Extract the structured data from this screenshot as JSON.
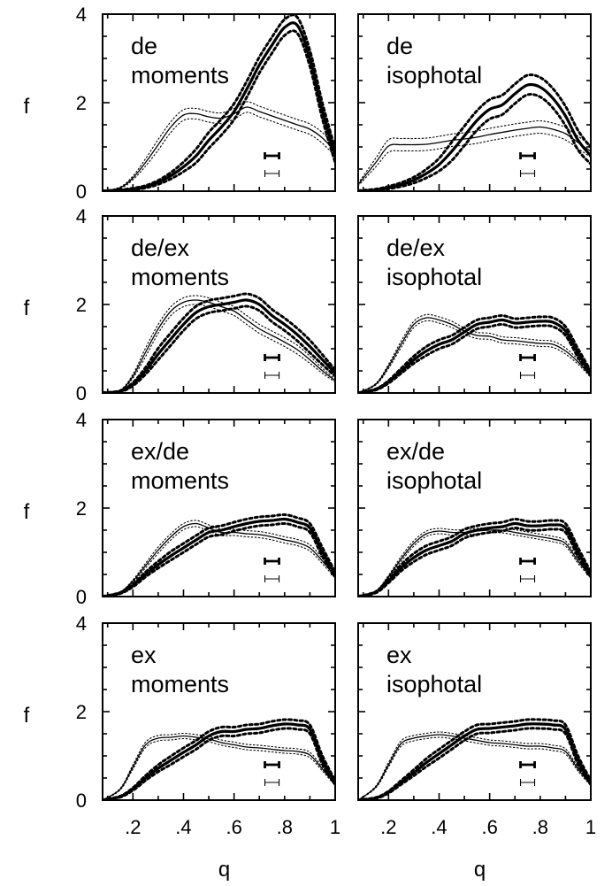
{
  "chart_data": {
    "type": "line",
    "layout_grid": "4 rows x 2 columns",
    "xlabel": "q",
    "ylabel": "f",
    "xlim": [
      0.08,
      1.0
    ],
    "ylim": [
      0,
      4
    ],
    "x_tick_labels": [
      ".2",
      ".4",
      ".6",
      ".8",
      "1"
    ],
    "x_ticks": [
      0.2,
      0.4,
      0.6,
      0.8,
      1.0
    ],
    "y_tick_labels": [
      "0",
      "2",
      "4"
    ],
    "y_ticks": [
      0,
      2,
      4
    ],
    "x": [
      0.08,
      0.15,
      0.2,
      0.25,
      0.3,
      0.35,
      0.4,
      0.45,
      0.5,
      0.55,
      0.6,
      0.65,
      0.7,
      0.75,
      0.8,
      0.85,
      0.9,
      0.95,
      1.0
    ],
    "line_styles": {
      "thick": "thick solid line with thick dotted band",
      "thin": "thin solid line with thin dotted band"
    },
    "panels": [
      {
        "label_line1": "de",
        "label_line2": "moments",
        "thick": [
          0.0,
          0.02,
          0.05,
          0.1,
          0.2,
          0.35,
          0.55,
          0.8,
          1.15,
          1.45,
          1.8,
          2.3,
          2.85,
          3.3,
          3.7,
          3.75,
          3.0,
          1.8,
          0.8
        ],
        "thick_band": 0.18,
        "thin": [
          0.0,
          0.08,
          0.3,
          0.65,
          1.05,
          1.45,
          1.72,
          1.75,
          1.68,
          1.65,
          1.75,
          1.9,
          1.8,
          1.7,
          1.6,
          1.5,
          1.4,
          1.2,
          0.9
        ],
        "thin_band": 0.12,
        "error_bar_x": 0.75,
        "thick_error": 0.08,
        "thin_error": 0.1
      },
      {
        "label_line1": "de",
        "label_line2": "isophotal",
        "thick": [
          0.0,
          0.03,
          0.08,
          0.15,
          0.25,
          0.4,
          0.6,
          0.9,
          1.25,
          1.6,
          1.85,
          1.95,
          2.2,
          2.4,
          2.35,
          2.1,
          1.7,
          1.15,
          0.8
        ],
        "thick_band": 0.22,
        "thin": [
          0.15,
          0.65,
          1.02,
          1.05,
          1.05,
          1.06,
          1.1,
          1.15,
          1.18,
          1.22,
          1.28,
          1.33,
          1.38,
          1.42,
          1.45,
          1.4,
          1.3,
          1.1,
          0.9
        ],
        "thin_band": 0.14,
        "error_bar_x": 0.75,
        "thick_error": 0.08,
        "thin_error": 0.12
      },
      {
        "label_line1": "de/ex",
        "label_line2": "moments",
        "thick": [
          0.0,
          0.04,
          0.2,
          0.5,
          0.88,
          1.22,
          1.55,
          1.82,
          1.95,
          2.0,
          2.05,
          2.1,
          2.0,
          1.75,
          1.55,
          1.32,
          1.05,
          0.75,
          0.45
        ],
        "thick_band": 0.14,
        "thin": [
          0.0,
          0.06,
          0.38,
          0.92,
          1.45,
          1.85,
          2.05,
          2.1,
          2.05,
          1.95,
          1.85,
          1.65,
          1.45,
          1.3,
          1.15,
          0.98,
          0.75,
          0.5,
          0.28
        ],
        "thin_band": 0.1,
        "error_bar_x": 0.75,
        "thick_error": 0.07,
        "thin_error": 0.08
      },
      {
        "label_line1": "de/ex",
        "label_line2": "isophotal",
        "thick": [
          0.0,
          0.08,
          0.25,
          0.5,
          0.75,
          0.95,
          1.1,
          1.2,
          1.38,
          1.55,
          1.6,
          1.65,
          1.58,
          1.6,
          1.62,
          1.6,
          1.4,
          0.9,
          0.45
        ],
        "thick_band": 0.1,
        "thin": [
          0.0,
          0.2,
          0.6,
          1.1,
          1.55,
          1.7,
          1.65,
          1.55,
          1.4,
          1.3,
          1.28,
          1.2,
          1.18,
          1.15,
          1.12,
          1.1,
          0.95,
          0.7,
          0.38
        ],
        "thin_band": 0.07,
        "error_bar_x": 0.75,
        "thick_error": 0.07,
        "thin_error": 0.08
      },
      {
        "label_line1": "ex/de",
        "label_line2": "moments",
        "thick": [
          0.0,
          0.08,
          0.25,
          0.5,
          0.72,
          0.92,
          1.1,
          1.28,
          1.45,
          1.5,
          1.58,
          1.65,
          1.7,
          1.72,
          1.75,
          1.68,
          1.55,
          1.0,
          0.5
        ],
        "thick_band": 0.1,
        "thin": [
          0.0,
          0.1,
          0.35,
          0.7,
          1.05,
          1.35,
          1.58,
          1.65,
          1.55,
          1.45,
          1.45,
          1.42,
          1.4,
          1.35,
          1.28,
          1.22,
          1.1,
          0.8,
          0.45
        ],
        "thin_band": 0.07,
        "error_bar_x": 0.75,
        "thick_error": 0.06,
        "thin_error": 0.07
      },
      {
        "label_line1": "ex/de",
        "label_line2": "isophotal",
        "thick": [
          0.0,
          0.1,
          0.35,
          0.65,
          0.88,
          1.05,
          1.15,
          1.25,
          1.42,
          1.5,
          1.55,
          1.58,
          1.65,
          1.6,
          1.6,
          1.62,
          1.55,
          1.0,
          0.5
        ],
        "thick_band": 0.1,
        "thin": [
          0.0,
          0.12,
          0.45,
          0.85,
          1.2,
          1.42,
          1.48,
          1.45,
          1.45,
          1.48,
          1.5,
          1.5,
          1.45,
          1.4,
          1.35,
          1.3,
          1.2,
          0.8,
          0.45
        ],
        "thin_band": 0.06,
        "error_bar_x": 0.75,
        "thick_error": 0.06,
        "thin_error": 0.07
      },
      {
        "label_line1": "ex",
        "label_line2": "moments",
        "thick": [
          0.0,
          0.08,
          0.25,
          0.5,
          0.72,
          0.9,
          1.08,
          1.25,
          1.45,
          1.55,
          1.55,
          1.6,
          1.62,
          1.68,
          1.72,
          1.7,
          1.6,
          0.9,
          0.4
        ],
        "thick_band": 0.1,
        "thin": [
          0.0,
          0.25,
          0.75,
          1.25,
          1.4,
          1.42,
          1.45,
          1.42,
          1.38,
          1.3,
          1.25,
          1.2,
          1.18,
          1.15,
          1.12,
          1.1,
          1.02,
          0.7,
          0.35
        ],
        "thin_band": 0.06,
        "error_bar_x": 0.75,
        "thick_error": 0.06,
        "thin_error": 0.07
      },
      {
        "label_line1": "ex",
        "label_line2": "isophotal",
        "thick": [
          0.0,
          0.05,
          0.18,
          0.4,
          0.62,
          0.85,
          1.05,
          1.25,
          1.45,
          1.6,
          1.62,
          1.65,
          1.68,
          1.72,
          1.72,
          1.7,
          1.6,
          0.9,
          0.4
        ],
        "thick_band": 0.1,
        "thin": [
          0.0,
          0.3,
          0.8,
          1.28,
          1.4,
          1.45,
          1.48,
          1.45,
          1.4,
          1.35,
          1.3,
          1.28,
          1.25,
          1.22,
          1.22,
          1.18,
          1.1,
          0.7,
          0.35
        ],
        "thin_band": 0.06,
        "error_bar_x": 0.75,
        "thick_error": 0.06,
        "thin_error": 0.07
      }
    ]
  }
}
